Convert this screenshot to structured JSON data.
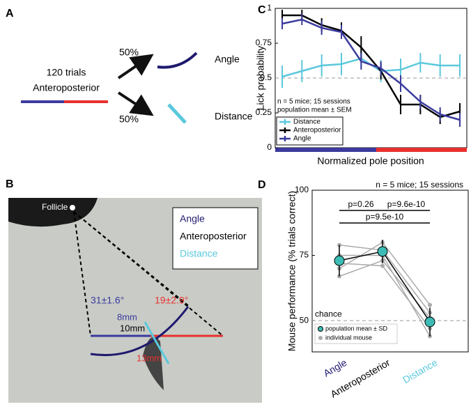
{
  "panel_a": {
    "label": "A",
    "trials": "120 trials",
    "condition": "Anteroposterior",
    "split_top": "50%",
    "split_bottom": "50%",
    "outcome_top": "Angle",
    "outcome_bottom": "Distance"
  },
  "panel_b": {
    "label": "B",
    "follicle": "Follicle",
    "legend": [
      "Angle",
      "Anteroposterior",
      "Distance"
    ],
    "angle_blue": "31±1.6°",
    "angle_red": "19±2.9°",
    "len_blue": "8mm",
    "len_black": "10mm",
    "len_red": "13mm"
  },
  "chart_data": [
    {
      "type": "line",
      "panel_label": "C",
      "xlabel": "Normalized pole position",
      "ylabel": "Lick probability",
      "categories": [
        null,
        null,
        null,
        null,
        null,
        null,
        null,
        null,
        null,
        null
      ],
      "series": [
        {
          "name": "Distance",
          "color": "#5bc8dc",
          "values": [
            0.51,
            0.55,
            0.59,
            0.6,
            0.64,
            0.55,
            0.56,
            0.61,
            0.59,
            0.59
          ],
          "errors": [
            0.08,
            0.08,
            0.08,
            0.08,
            0.07,
            0.08,
            0.08,
            0.07,
            0.08,
            0.08
          ]
        },
        {
          "name": "Anteroposterior",
          "color": "#000000",
          "values": [
            0.95,
            0.95,
            0.88,
            0.84,
            0.72,
            0.55,
            0.31,
            0.31,
            0.22,
            0.26
          ],
          "errors": [
            0.04,
            0.04,
            0.05,
            0.06,
            0.08,
            0.06,
            0.07,
            0.07,
            0.05,
            0.06
          ]
        },
        {
          "name": "Angle",
          "color": "#3a3a9e",
          "values": [
            0.89,
            0.92,
            0.86,
            0.83,
            0.62,
            0.57,
            0.46,
            0.33,
            0.24,
            0.2
          ],
          "errors": [
            0.04,
            0.04,
            0.05,
            0.05,
            0.06,
            0.05,
            0.06,
            0.05,
            0.05,
            0.05
          ]
        }
      ],
      "ylim": [
        0,
        1
      ],
      "yticks": [
        0,
        0.25,
        0.5,
        0.75,
        1
      ],
      "reference_line": 0.5,
      "legend": "lower left",
      "annotations": [
        "n = 5 mice; 15 sessions",
        "population mean ± SEM"
      ]
    },
    {
      "type": "dot",
      "panel_label": "D",
      "ylabel": "Mouse performance (% trials correct)",
      "categories": [
        "Angle",
        "Anteroposterior",
        "Distance"
      ],
      "category_colors": [
        "#1f1a6e",
        "#000000",
        "#5bc8dc"
      ],
      "series": [
        {
          "name": "population mean ± SD",
          "color": "#3cbcb4",
          "values": [
            73,
            76.5,
            49.5
          ],
          "errors": [
            6,
            4.5,
            5.5
          ]
        },
        {
          "name": "individual mouse",
          "color": "#aaaaaa",
          "mice": [
            [
              79,
              77,
              53
            ],
            [
              72,
              71,
              47
            ],
            [
              70,
              80,
              56
            ],
            [
              67,
              73,
              51
            ],
            [
              75,
              75,
              44
            ]
          ]
        }
      ],
      "ylim": [
        38,
        100
      ],
      "yticks": [
        50,
        75,
        100
      ],
      "chance_line": 50,
      "chance_label": "chance",
      "annotation": "n = 5 mice; 15 sessions",
      "comparisons": [
        {
          "from": "Angle",
          "to": "Anteroposterior",
          "label": "p=0.26"
        },
        {
          "from": "Anteroposterior",
          "to": "Distance",
          "label": "p=9.6e-10"
        },
        {
          "from": "Angle",
          "to": "Distance",
          "label": "p=9.5e-10"
        }
      ]
    }
  ]
}
